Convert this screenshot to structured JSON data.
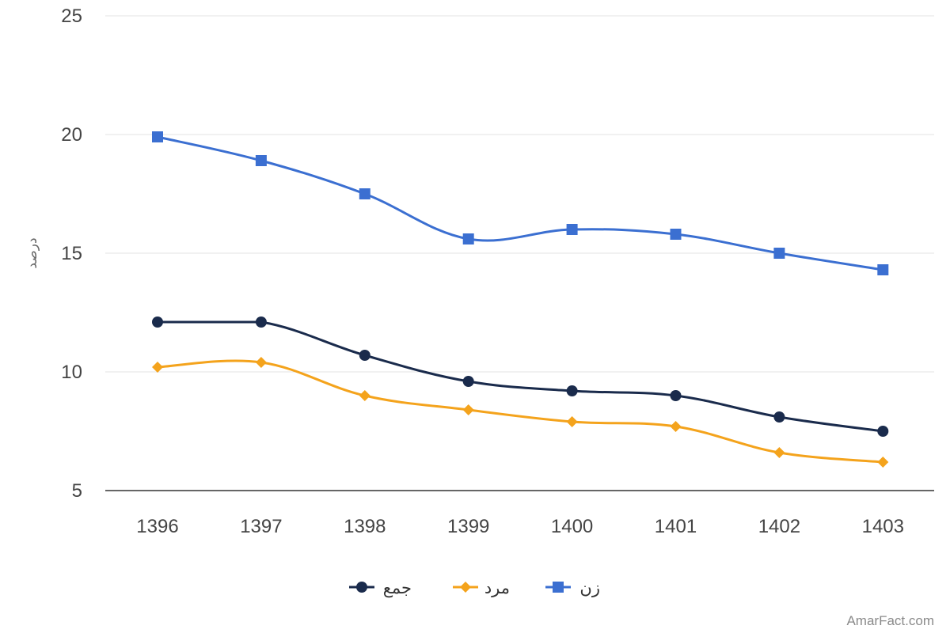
{
  "chart_data": {
    "type": "line",
    "categories": [
      "1396",
      "1397",
      "1398",
      "1399",
      "1400",
      "1401",
      "1402",
      "1403"
    ],
    "ylabel": "درصد",
    "xlabel": "",
    "ylim": [
      5,
      25
    ],
    "yticks": [
      "5",
      "10",
      "15",
      "20",
      "25"
    ],
    "grid": true,
    "legend_position": "bottom-center",
    "series": [
      {
        "name": "جمع",
        "color": "#1a2b4c",
        "marker": "circle",
        "values": [
          12.1,
          12.1,
          10.7,
          9.6,
          9.2,
          9.0,
          8.1,
          7.5
        ]
      },
      {
        "name": "مرد",
        "color": "#f4a31c",
        "marker": "diamond",
        "values": [
          10.2,
          10.4,
          9.0,
          8.4,
          7.9,
          7.7,
          6.6,
          6.2
        ]
      },
      {
        "name": "زن",
        "color": "#3b6fd1",
        "marker": "square",
        "values": [
          19.9,
          18.9,
          17.5,
          15.6,
          16.0,
          15.8,
          15.0,
          14.3
        ]
      }
    ]
  },
  "watermark": "AmarFact.com"
}
